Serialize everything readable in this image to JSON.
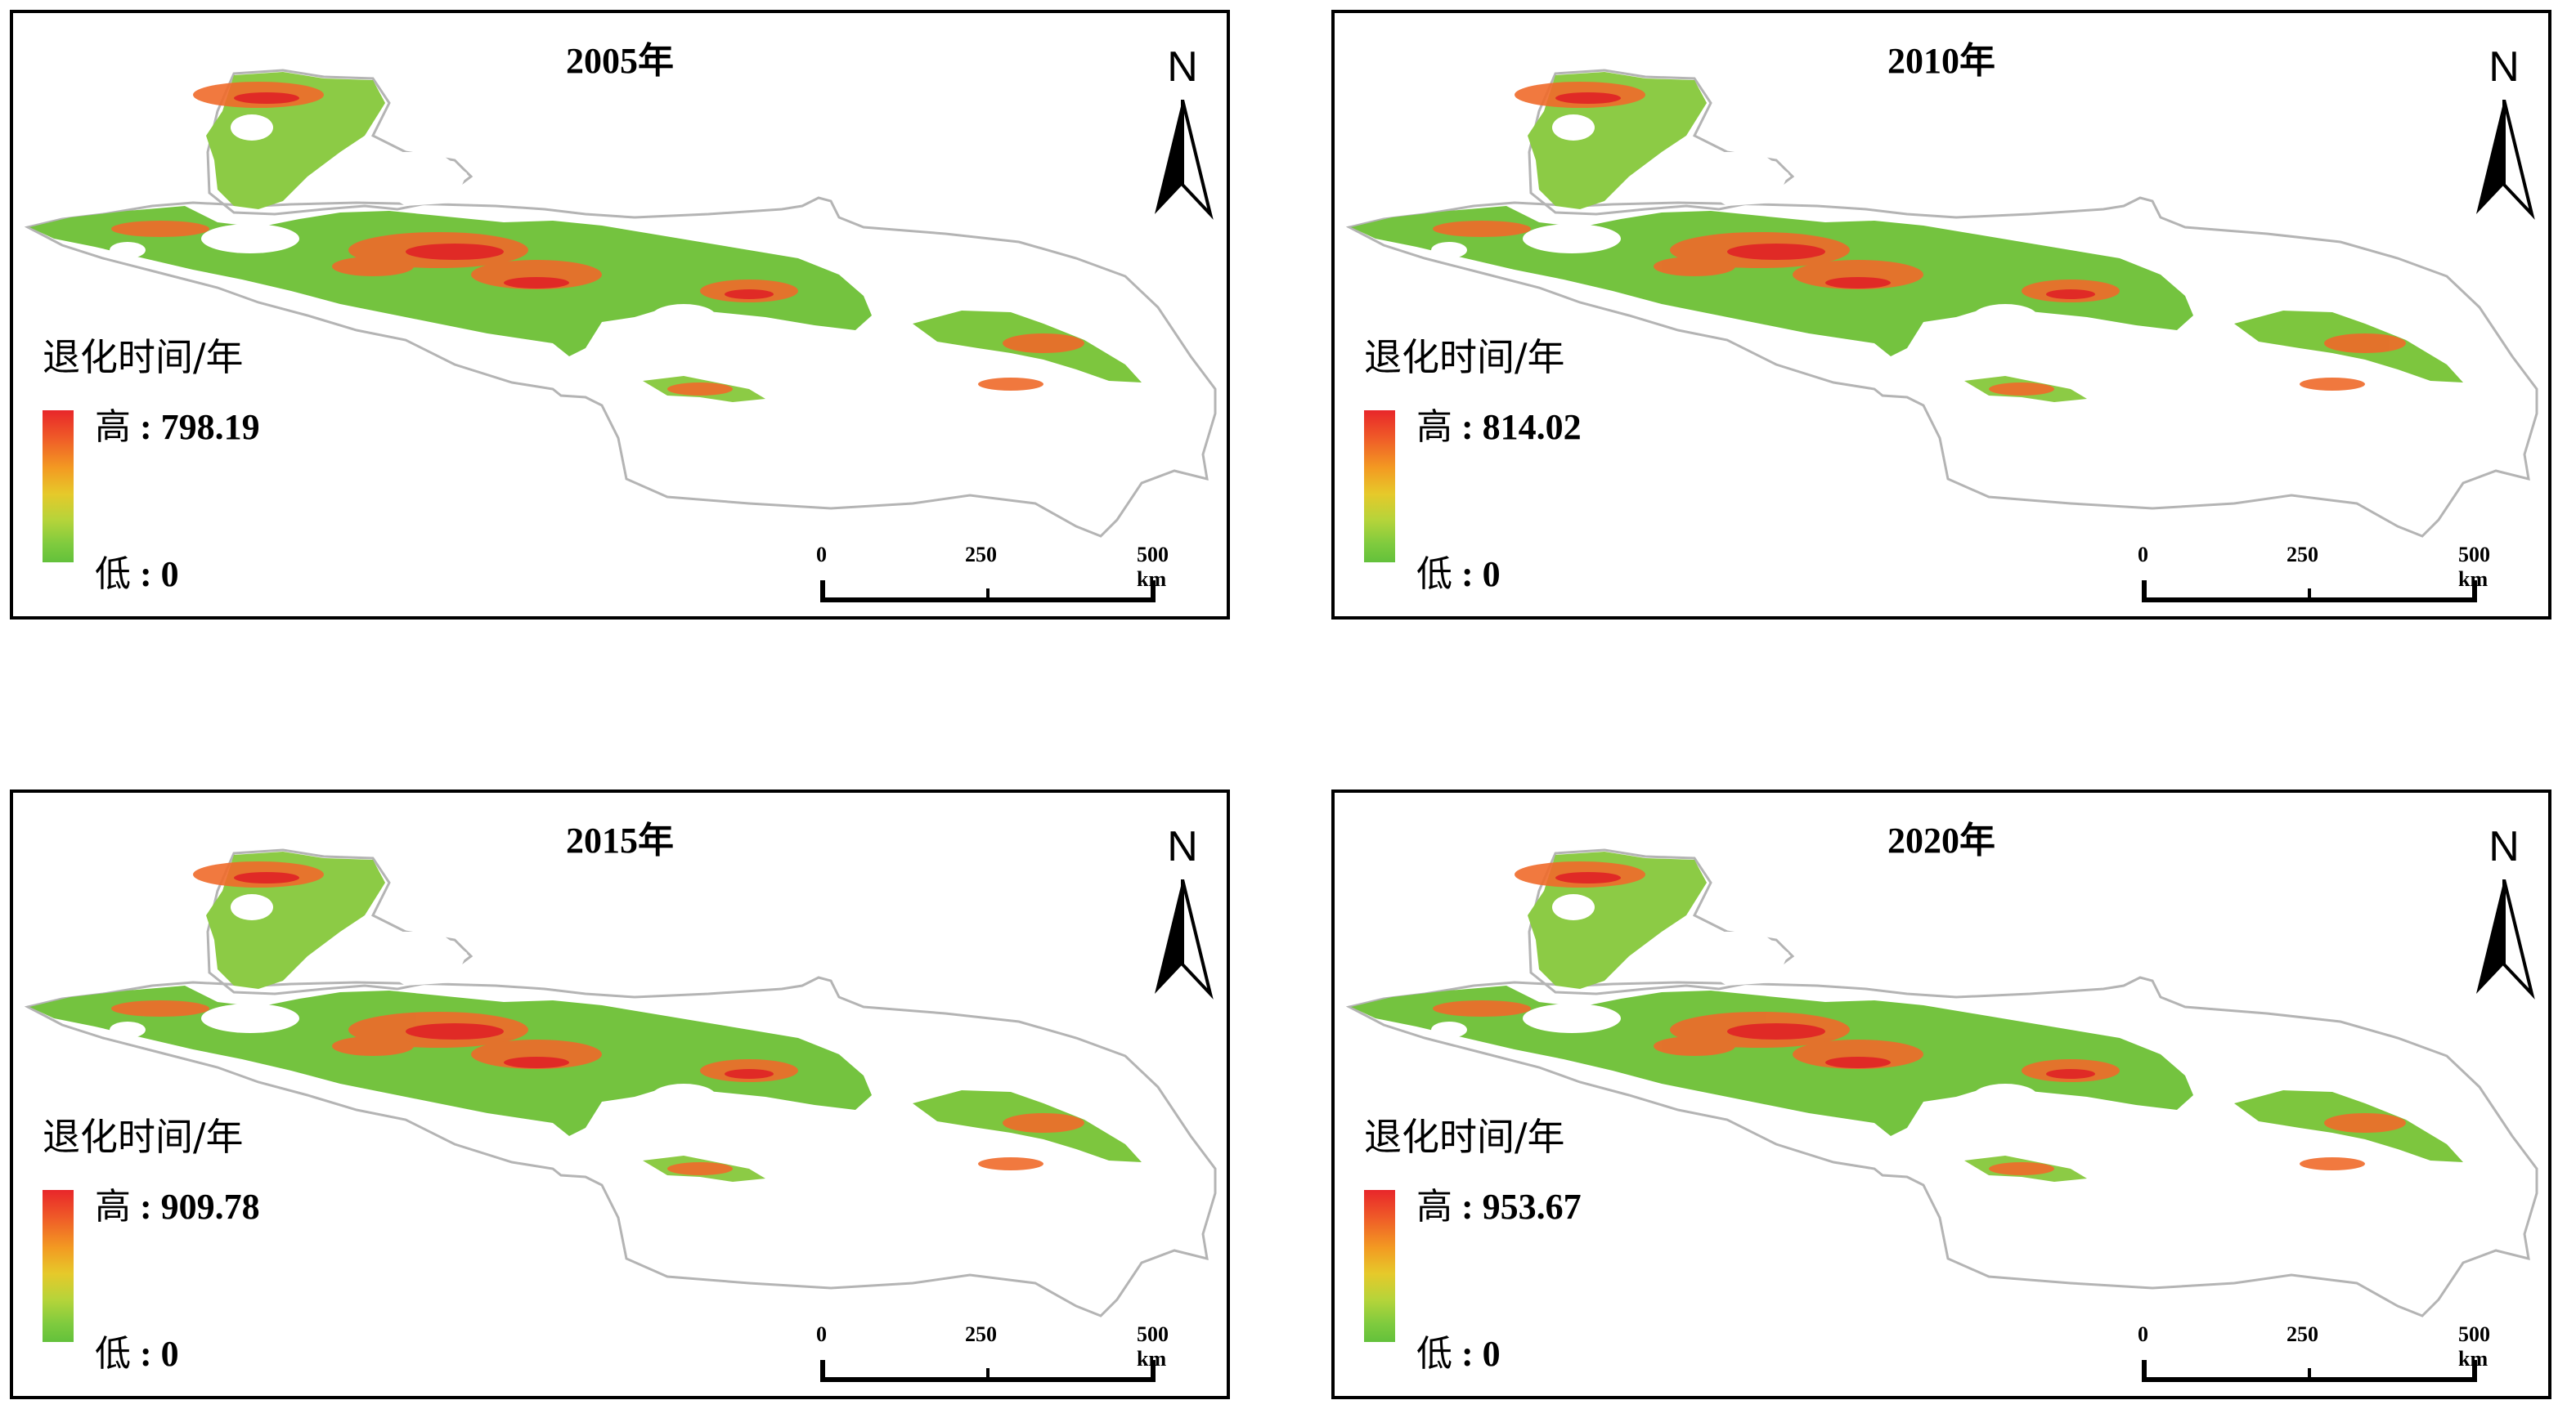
{
  "legend_title": "退化时间/年",
  "legend_high_prefix": "高",
  "legend_low_prefix": "低",
  "north_label": "N",
  "scale_labels": [
    "0",
    "250",
    "500 km"
  ],
  "colors": {
    "high": "#e8262a",
    "mid": "#f39a22",
    "low": "#63c13b",
    "boundary": "#b4b4b4",
    "frame": "#000000"
  },
  "panels": [
    {
      "title": "2005年",
      "high_value": "798.19",
      "low_value": "0"
    },
    {
      "title": "2010年",
      "high_value": "814.02",
      "low_value": "0"
    },
    {
      "title": "2015年",
      "high_value": "909.78",
      "low_value": "0"
    },
    {
      "title": "2020年",
      "high_value": "953.67",
      "low_value": "0"
    }
  ]
}
